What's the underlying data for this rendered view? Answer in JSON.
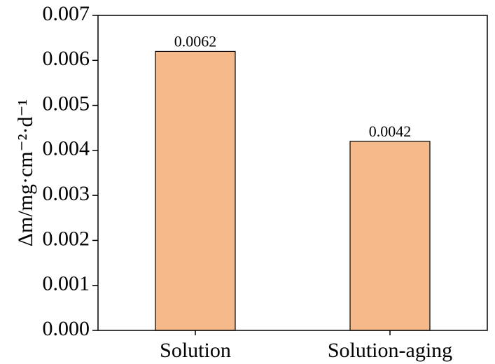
{
  "chart_data": {
    "type": "bar",
    "y_label": "Δm/mg·cm⁻²·d⁻¹",
    "categories": [
      "Solution",
      "Solution-aging"
    ],
    "values": [
      0.0062,
      0.0042
    ],
    "color": "#f6b98a",
    "ylim": [
      0,
      0.007
    ],
    "yticks": [
      {
        "value": 0,
        "label": "0.000"
      },
      0.001,
      0.002,
      0.003,
      0.004,
      0.005,
      0.006,
      0.007
    ],
    "grid": false
  }
}
